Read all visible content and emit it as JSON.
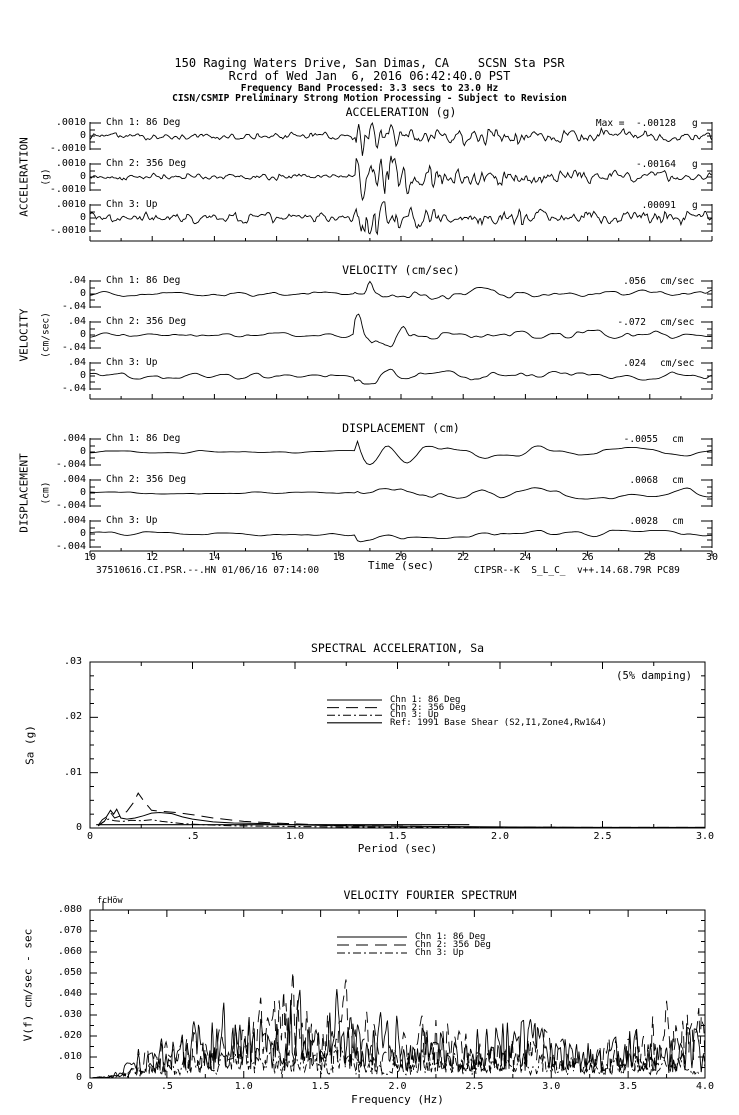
{
  "header": {
    "line1": "150 Raging Waters Drive, San Dimas, CA    SCSN Sta PSR",
    "line2": "Rcrd of Wed Jan  6, 2016 06:42:40.0 PST",
    "line3": "Frequency Band Processed: 3.3 secs to 23.0 Hz",
    "line4": "CISN/CSMIP Preliminary Strong Motion Processing - Subject to Revision"
  },
  "footer": {
    "left": "37510616.CI.PSR.--.HN 01/06/16 07:14:00",
    "right": "CIPSR--K  S_L_C_  v++.14.68.79R PC89"
  },
  "time_axis": {
    "label": "Time (sec)",
    "values": [
      10,
      12,
      14,
      16,
      18,
      20,
      22,
      24,
      26,
      28,
      30
    ],
    "labels": [
      "10",
      "12",
      "14",
      "16",
      "18",
      "20",
      "22",
      "24",
      "26",
      "28",
      "30"
    ]
  },
  "chart_data": [
    {
      "id": "acceleration",
      "type": "line",
      "title": "ACCELERATION (g)",
      "side_label": "ACCELERATION",
      "side_sublabel": "(g)",
      "unit": "g",
      "xlim": [
        10,
        30
      ],
      "full_scale": 0.001,
      "y_ticks": [
        ".0010",
        "0",
        "-.0010"
      ],
      "channels": [
        {
          "name": "Chn 1: 86 Deg",
          "max_prefix": "Max =",
          "max_text": "-.00128",
          "max_value": -0.00128
        },
        {
          "name": "Chn 2: 356 Deg",
          "max_text": "-.00164",
          "max_value": -0.00164
        },
        {
          "name": "Chn 3: Up",
          "max_text": ".00091",
          "max_value": 0.00091
        }
      ],
      "gen": {
        "seeds": [
          101,
          202,
          303
        ],
        "dt": 0.04,
        "g1": 3,
        "g2": 1.6,
        "w1": 0.75,
        "w2": 0.5,
        "pre": [
          0.0003,
          0.00026,
          0.0004
        ],
        "burst": [
          0.00115,
          0.0015,
          0.00075
        ],
        "sustain": [
          0.00045,
          0.0005,
          0.00035
        ],
        "burst_t": 18.55,
        "tau_burst": 2.2,
        "tau_sustain": 9
      }
    },
    {
      "id": "velocity",
      "type": "line",
      "title": "VELOCITY (cm/sec)",
      "side_label": "VELOCITY",
      "side_sublabel": "(cm/sec)",
      "unit": "cm/sec",
      "xlim": [
        10,
        30
      ],
      "full_scale": 0.04,
      "y_ticks": [
        ".04",
        "0",
        "-.04"
      ],
      "channels": [
        {
          "name": "Chn 1: 86 Deg",
          "max_text": ".056",
          "max_value": 0.056
        },
        {
          "name": "Chn 2: 356 Deg",
          "max_text": "-.072",
          "max_value": -0.072
        },
        {
          "name": "Chn 3: Up",
          "max_text": ".024",
          "max_value": 0.024
        }
      ],
      "gen": {
        "seeds": [
          404,
          505,
          606
        ],
        "dt": 0.06,
        "g1": 8,
        "g2": 3,
        "w1": 0.8,
        "w2": 0.3,
        "pre": [
          0.009,
          0.008,
          0.012
        ],
        "burst": [
          0.048,
          0.062,
          0.02
        ],
        "sustain": [
          0.018,
          0.02,
          0.009
        ],
        "burst_t": 18.5,
        "tau_burst": 1.6,
        "tau_sustain": 7
      }
    },
    {
      "id": "displacement",
      "type": "line",
      "title": "DISPLACEMENT (cm)",
      "side_label": "DISPLACEMENT",
      "side_sublabel": "(cm)",
      "unit": "cm",
      "xlim": [
        10,
        30
      ],
      "full_scale": 0.004,
      "y_ticks": [
        ".004",
        "0",
        "-.004"
      ],
      "channels": [
        {
          "name": "Chn 1: 86 Deg",
          "max_text": "-.0055",
          "max_value": -0.0055
        },
        {
          "name": "Chn 2: 356 Deg",
          "max_text": ".0068",
          "max_value": 0.0068
        },
        {
          "name": "Chn 3: Up",
          "max_text": ".0028",
          "max_value": 0.0028
        }
      ],
      "gen": {
        "seeds": [
          707,
          808,
          909
        ],
        "dt": 0.1,
        "g1": 6,
        "g2": 2.5,
        "w1": 0.85,
        "w2": 0.2,
        "pre": [
          0.0005,
          0.0005,
          0.0007
        ],
        "burst": [
          0.0048,
          0.0058,
          0.0022
        ],
        "sustain": [
          0.002,
          0.0024,
          0.001
        ],
        "burst_t": 18.6,
        "tau_burst": 1.3,
        "tau_sustain": 18
      }
    },
    {
      "id": "spectral_acceleration",
      "type": "line",
      "title": "SPECTRAL ACCELERATION, Sa",
      "annotation": "(5% damping)",
      "xlabel": "Period (sec)",
      "ylabel": "Sa (g)",
      "xlim": [
        0,
        3.0
      ],
      "ylim": [
        0,
        0.03
      ],
      "x_ticks": [
        "0",
        ".5",
        "1.0",
        "1.5",
        "2.0",
        "2.5",
        "3.0"
      ],
      "x_tick_values": [
        0,
        0.5,
        1.0,
        1.5,
        2.0,
        2.5,
        3.0
      ],
      "y_ticks": [
        ".03",
        ".02",
        ".01",
        "0"
      ],
      "y_tick_values": [
        0.03,
        0.02,
        0.01,
        0
      ],
      "series": [
        {
          "name": "Chn 1: 86 Deg",
          "style": "solid",
          "points": [
            [
              0.04,
              0.0005
            ],
            [
              0.06,
              0.0015
            ],
            [
              0.08,
              0.002
            ],
            [
              0.1,
              0.0032
            ],
            [
              0.115,
              0.0025
            ],
            [
              0.13,
              0.0034
            ],
            [
              0.15,
              0.0018
            ],
            [
              0.18,
              0.0016
            ],
            [
              0.22,
              0.0018
            ],
            [
              0.26,
              0.0022
            ],
            [
              0.3,
              0.0027
            ],
            [
              0.34,
              0.0028
            ],
            [
              0.4,
              0.0026
            ],
            [
              0.45,
              0.002
            ],
            [
              0.5,
              0.0016
            ],
            [
              0.6,
              0.0011
            ],
            [
              0.7,
              0.0009
            ],
            [
              0.85,
              0.0008
            ],
            [
              1.0,
              0.0006
            ],
            [
              1.2,
              0.0004
            ],
            [
              1.5,
              0.0003
            ],
            [
              2.0,
              0.0002
            ],
            [
              2.5,
              0.0001
            ],
            [
              3.0,
              0.0001
            ]
          ]
        },
        {
          "name": "Chn 2: 356 Deg",
          "style": "long-dash",
          "points": [
            [
              0.04,
              0.0004
            ],
            [
              0.07,
              0.0012
            ],
            [
              0.1,
              0.0028
            ],
            [
              0.12,
              0.0018
            ],
            [
              0.15,
              0.0022
            ],
            [
              0.18,
              0.003
            ],
            [
              0.21,
              0.0045
            ],
            [
              0.235,
              0.0063
            ],
            [
              0.26,
              0.005
            ],
            [
              0.3,
              0.0032
            ],
            [
              0.35,
              0.003
            ],
            [
              0.42,
              0.0028
            ],
            [
              0.5,
              0.0024
            ],
            [
              0.6,
              0.0018
            ],
            [
              0.75,
              0.0012
            ],
            [
              0.9,
              0.0009
            ],
            [
              1.1,
              0.0006
            ],
            [
              1.4,
              0.0004
            ],
            [
              1.8,
              0.0002
            ],
            [
              2.4,
              0.0001
            ],
            [
              3.0,
              0.0001
            ]
          ]
        },
        {
          "name": "Chn 3: Up",
          "style": "dash-dot",
          "points": [
            [
              0.04,
              0.0004
            ],
            [
              0.06,
              0.001
            ],
            [
              0.09,
              0.0016
            ],
            [
              0.12,
              0.0013
            ],
            [
              0.16,
              0.0012
            ],
            [
              0.2,
              0.0014
            ],
            [
              0.25,
              0.0013
            ],
            [
              0.3,
              0.0015
            ],
            [
              0.35,
              0.0012
            ],
            [
              0.45,
              0.0008
            ],
            [
              0.55,
              0.0006
            ],
            [
              0.7,
              0.0004
            ],
            [
              0.9,
              0.0003
            ],
            [
              1.2,
              0.0002
            ],
            [
              1.6,
              0.0001
            ],
            [
              2.2,
              0.0001
            ],
            [
              3.0,
              5e-05
            ]
          ]
        },
        {
          "name": "Ref: 1991 Base Shear (S2,I1,Zone4,Rw1&4)",
          "style": "solid",
          "points": [
            [
              0.03,
              0.0006
            ],
            [
              1.85,
              0.0006
            ]
          ]
        }
      ]
    },
    {
      "id": "velocity_fourier_spectrum",
      "type": "line",
      "title": "VELOCITY FOURIER SPECTRUM",
      "corner_marker": "fcHöw",
      "xlabel": "Frequency (Hz)",
      "ylabel": "V(f)  cm/sec - sec",
      "xlim": [
        0,
        4.0
      ],
      "ylim": [
        0,
        0.08
      ],
      "x_ticks": [
        "0",
        ".5",
        "1.0",
        "1.5",
        "2.0",
        "2.5",
        "3.0",
        "3.5",
        "4.0"
      ],
      "x_tick_values": [
        0,
        0.5,
        1.0,
        1.5,
        2.0,
        2.5,
        3.0,
        3.5,
        4.0
      ],
      "y_ticks": [
        ".080",
        ".070",
        ".060",
        ".050",
        ".040",
        ".030",
        ".020",
        ".010",
        "0"
      ],
      "y_tick_values": [
        0.08,
        0.07,
        0.06,
        0.05,
        0.04,
        0.03,
        0.02,
        0.01,
        0
      ],
      "series": [
        {
          "name": "Chn 1: 86 Deg",
          "style": "solid",
          "seed": 11,
          "envelope": [
            [
              0,
              0
            ],
            [
              0.1,
              0.001
            ],
            [
              0.2,
              0.005
            ],
            [
              0.3,
              0.012
            ],
            [
              0.4,
              0.018
            ],
            [
              0.5,
              0.02
            ],
            [
              0.6,
              0.022
            ],
            [
              0.7,
              0.03
            ],
            [
              0.8,
              0.035
            ],
            [
              0.9,
              0.042
            ],
            [
              1.0,
              0.03
            ],
            [
              1.1,
              0.035
            ],
            [
              1.2,
              0.04
            ],
            [
              1.3,
              0.045
            ],
            [
              1.4,
              0.042
            ],
            [
              1.5,
              0.035
            ],
            [
              1.6,
              0.045
            ],
            [
              1.7,
              0.03
            ],
            [
              1.8,
              0.028
            ],
            [
              1.9,
              0.032
            ],
            [
              2.0,
              0.028
            ],
            [
              2.2,
              0.025
            ],
            [
              2.4,
              0.022
            ],
            [
              2.6,
              0.03
            ],
            [
              2.8,
              0.035
            ],
            [
              2.9,
              0.033
            ],
            [
              3.0,
              0.025
            ],
            [
              3.2,
              0.02
            ],
            [
              3.4,
              0.022
            ],
            [
              3.6,
              0.025
            ],
            [
              3.8,
              0.022
            ],
            [
              4.0,
              0.028
            ]
          ]
        },
        {
          "name": "Chn 2: 356 Deg",
          "style": "long-dash",
          "seed": 22,
          "envelope": [
            [
              0,
              0
            ],
            [
              0.1,
              0.001
            ],
            [
              0.2,
              0.004
            ],
            [
              0.3,
              0.014
            ],
            [
              0.4,
              0.02
            ],
            [
              0.5,
              0.018
            ],
            [
              0.6,
              0.02
            ],
            [
              0.7,
              0.025
            ],
            [
              0.8,
              0.028
            ],
            [
              0.9,
              0.03
            ],
            [
              1.0,
              0.035
            ],
            [
              1.1,
              0.04
            ],
            [
              1.2,
              0.05
            ],
            [
              1.3,
              0.053
            ],
            [
              1.4,
              0.04
            ],
            [
              1.5,
              0.035
            ],
            [
              1.6,
              0.055
            ],
            [
              1.7,
              0.045
            ],
            [
              1.8,
              0.03
            ],
            [
              1.9,
              0.025
            ],
            [
              2.0,
              0.028
            ],
            [
              2.2,
              0.03
            ],
            [
              2.4,
              0.028
            ],
            [
              2.6,
              0.022
            ],
            [
              2.8,
              0.025
            ],
            [
              3.0,
              0.022
            ],
            [
              3.2,
              0.018
            ],
            [
              3.4,
              0.02
            ],
            [
              3.6,
              0.03
            ],
            [
              3.8,
              0.04
            ],
            [
              4.0,
              0.045
            ]
          ]
        },
        {
          "name": "Chn 3: Up",
          "style": "dash-dot",
          "seed": 33,
          "envelope": [
            [
              0,
              0
            ],
            [
              0.15,
              0.001
            ],
            [
              0.3,
              0.006
            ],
            [
              0.5,
              0.01
            ],
            [
              0.7,
              0.012
            ],
            [
              0.9,
              0.014
            ],
            [
              1.1,
              0.016
            ],
            [
              1.3,
              0.018
            ],
            [
              1.5,
              0.015
            ],
            [
              1.7,
              0.014
            ],
            [
              1.9,
              0.012
            ],
            [
              2.1,
              0.014
            ],
            [
              2.3,
              0.012
            ],
            [
              2.5,
              0.013
            ],
            [
              2.7,
              0.012
            ],
            [
              2.9,
              0.014
            ],
            [
              3.1,
              0.012
            ],
            [
              3.3,
              0.01
            ],
            [
              3.5,
              0.012
            ],
            [
              3.7,
              0.01
            ],
            [
              4.0,
              0.012
            ]
          ]
        }
      ]
    }
  ]
}
